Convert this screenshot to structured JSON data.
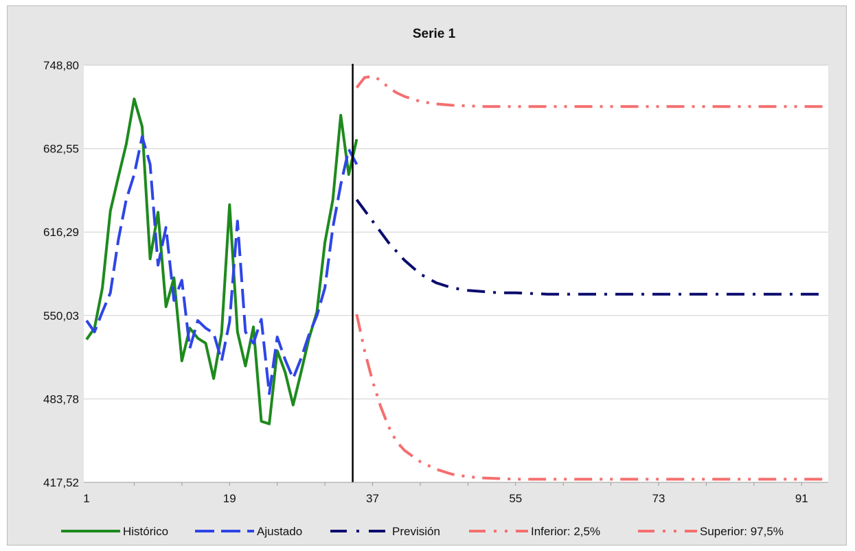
{
  "chart_data": {
    "type": "line",
    "title": "Serie 1",
    "xlabel": "",
    "ylabel": "",
    "xlim": [
      1,
      94
    ],
    "ylim": [
      417.52,
      748.8
    ],
    "y_ticks": [
      "417,52",
      "483,78",
      "550,03",
      "616,29",
      "682,55",
      "748,80"
    ],
    "y_tick_values": [
      417.52,
      483.78,
      550.03,
      616.29,
      682.55,
      748.8
    ],
    "x_ticks": [
      "1",
      "19",
      "37",
      "55",
      "73",
      "91"
    ],
    "x_tick_values": [
      1,
      19,
      37,
      55,
      73,
      91
    ],
    "grid": "horizontal",
    "legend_position": "bottom",
    "forecast_origin": 34.5,
    "series": [
      {
        "name": "Histórico",
        "color": "#1e8a1e",
        "style": "solid",
        "x": [
          1,
          2,
          3,
          4,
          5,
          6,
          7,
          8,
          9,
          10,
          11,
          12,
          13,
          14,
          15,
          16,
          17,
          18,
          19,
          20,
          21,
          22,
          23,
          24,
          25,
          26,
          27,
          28,
          29,
          30,
          31,
          32,
          33,
          34,
          35
        ],
        "values": [
          531,
          540,
          572,
          633,
          660,
          686,
          722,
          700,
          595,
          632,
          557,
          580,
          514,
          540,
          532,
          528,
          500,
          536,
          638,
          537,
          510,
          541,
          466,
          464,
          522,
          505,
          479,
          505,
          532,
          553,
          608,
          642,
          709,
          662,
          690
        ]
      },
      {
        "name": "Ajustado",
        "color": "#2e45e6",
        "style": "dash",
        "x": [
          1,
          2,
          3,
          4,
          5,
          6,
          7,
          8,
          9,
          10,
          11,
          12,
          13,
          14,
          15,
          16,
          17,
          18,
          19,
          20,
          21,
          22,
          23,
          24,
          25,
          26,
          27,
          28,
          29,
          30,
          31,
          32,
          33,
          34,
          35
        ],
        "values": [
          546,
          537,
          553,
          568,
          610,
          642,
          662,
          692,
          670,
          590,
          620,
          562,
          578,
          524,
          546,
          540,
          536,
          514,
          545,
          625,
          537,
          528,
          547,
          488,
          533,
          515,
          500,
          516,
          535,
          550,
          572,
          620,
          654,
          682,
          670
        ]
      },
      {
        "name": "Previsión",
        "color": "#0b0b6e",
        "style": "dashdot",
        "x": [
          35,
          37,
          39,
          41,
          43,
          45,
          47,
          49,
          51,
          53,
          55,
          57,
          59,
          61,
          65,
          70,
          75,
          80,
          85,
          90,
          94
        ],
        "values": [
          642,
          625,
          608,
          594,
          583,
          576,
          572,
          570,
          569,
          568,
          568,
          567.5,
          567,
          567,
          567,
          567,
          567,
          567,
          567,
          567,
          567
        ]
      },
      {
        "name": "Inferior: 2,5%",
        "color": "#f56e6e",
        "style": "dashdotdot",
        "x": [
          35,
          36,
          37,
          38,
          39,
          40,
          41,
          43,
          45,
          47,
          49,
          51,
          53,
          55,
          58,
          61,
          65,
          70,
          75,
          80,
          85,
          90,
          94
        ],
        "values": [
          551,
          522,
          498,
          478,
          462,
          450,
          443,
          434,
          428,
          424,
          422,
          421,
          420.5,
          420,
          420,
          420,
          420,
          420,
          420,
          420,
          420,
          420,
          420
        ]
      },
      {
        "name": "Superior: 97,5%",
        "color": "#f56e6e",
        "style": "dashdotdot",
        "x": [
          35,
          36,
          37,
          38,
          39,
          40,
          41,
          43,
          45,
          47,
          49,
          51,
          53,
          55,
          58,
          61,
          65,
          70,
          75,
          80,
          85,
          90,
          94
        ],
        "values": [
          731,
          739,
          740,
          737,
          731,
          727,
          724,
          720,
          718,
          717,
          716.5,
          716,
          716,
          716,
          716,
          716,
          716,
          716,
          716,
          716,
          716,
          716,
          716
        ]
      }
    ]
  }
}
